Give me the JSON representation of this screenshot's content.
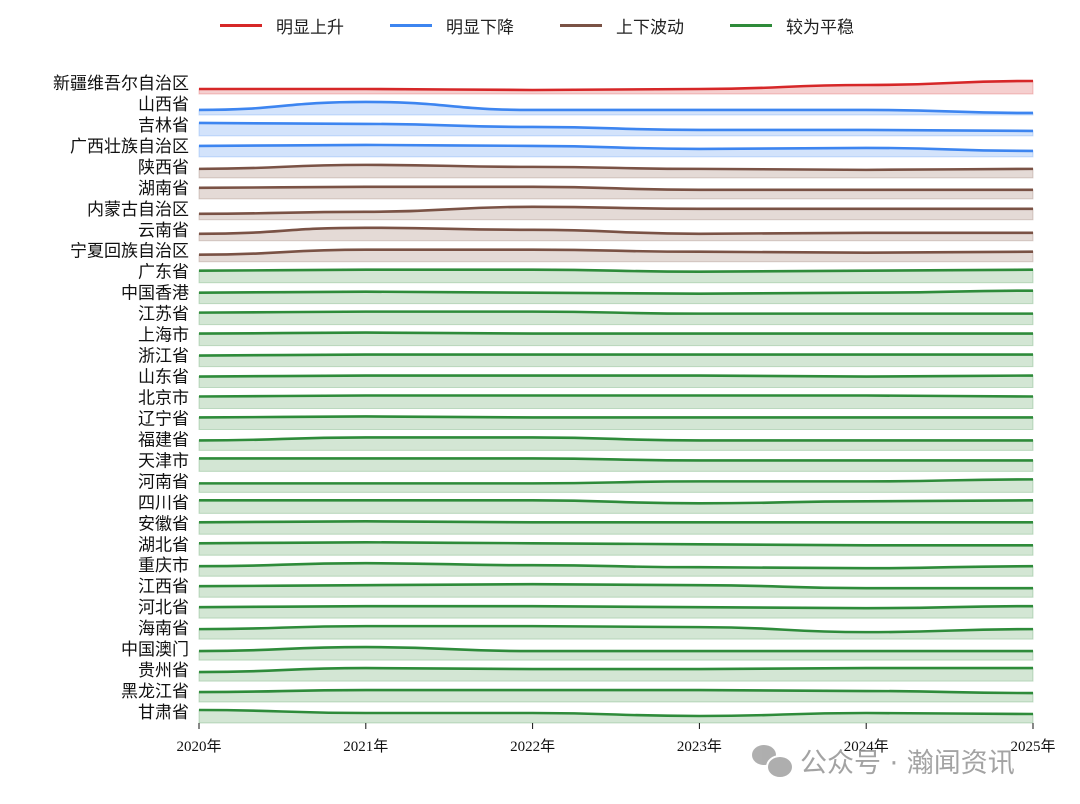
{
  "chart_data": {
    "type": "area",
    "subtype": "ridgeline",
    "title": "",
    "xlabel": "",
    "ylabel": "",
    "x": [
      "2020年",
      "2021年",
      "2022年",
      "2023年",
      "2024年",
      "2025年"
    ],
    "grid": false,
    "legend_position": "top-center",
    "legend": [
      {
        "key": "rise",
        "label": "明显上升",
        "color": "#d62728",
        "fill": "#f5cfcf"
      },
      {
        "key": "fall",
        "label": "明显下降",
        "color": "#3d85f0",
        "fill": "#d3e3fb"
      },
      {
        "key": "fluct",
        "label": "上下波动",
        "color": "#7a5245",
        "fill": "#e4dad6"
      },
      {
        "key": "flat",
        "label": "较为平稳",
        "color": "#2e8b3a",
        "fill": "#d3e6d4"
      }
    ],
    "value_note": "Relative values shown as pixel offsets above each row's band base (higher = larger)",
    "series": [
      {
        "name": "新疆维吾尔自治区",
        "group": "rise",
        "values": [
          5,
          5,
          4,
          5,
          9,
          13
        ]
      },
      {
        "name": "山西省",
        "group": "fall",
        "values": [
          5,
          13,
          5,
          5,
          5,
          2
        ]
      },
      {
        "name": "吉林省",
        "group": "fall",
        "values": [
          13,
          12,
          9,
          6,
          6,
          5
        ]
      },
      {
        "name": "广西壮族自治区",
        "group": "fall",
        "values": [
          11,
          12,
          11,
          8,
          9,
          6
        ]
      },
      {
        "name": "陕西省",
        "group": "fluct",
        "values": [
          9,
          13,
          11,
          9,
          8,
          9
        ]
      },
      {
        "name": "湖南省",
        "group": "fluct",
        "values": [
          11,
          12,
          12,
          9,
          9,
          9
        ]
      },
      {
        "name": "内蒙古自治区",
        "group": "fluct",
        "values": [
          6,
          8,
          13,
          11,
          11,
          11
        ]
      },
      {
        "name": "云南省",
        "group": "fluct",
        "values": [
          7,
          13,
          11,
          7,
          8,
          8
        ]
      },
      {
        "name": "宁夏回族自治区",
        "group": "fluct",
        "values": [
          7,
          12,
          12,
          10,
          9,
          10
        ]
      },
      {
        "name": "广东省",
        "group": "flat",
        "values": [
          12,
          13,
          13,
          11,
          12,
          13
        ]
      },
      {
        "name": "中国香港",
        "group": "flat",
        "values": [
          11,
          12,
          11,
          10,
          11,
          13
        ]
      },
      {
        "name": "江苏省",
        "group": "flat",
        "values": [
          12,
          13,
          13,
          11,
          11,
          11
        ]
      },
      {
        "name": "上海市",
        "group": "flat",
        "values": [
          12,
          13,
          12,
          12,
          12,
          12
        ]
      },
      {
        "name": "浙江省",
        "group": "flat",
        "values": [
          11,
          12,
          12,
          12,
          12,
          12
        ]
      },
      {
        "name": "山东省",
        "group": "flat",
        "values": [
          11,
          12,
          12,
          12,
          11,
          12
        ]
      },
      {
        "name": "北京市",
        "group": "flat",
        "values": [
          12,
          13,
          13,
          13,
          13,
          12
        ]
      },
      {
        "name": "辽宁省",
        "group": "flat",
        "values": [
          12,
          13,
          12,
          12,
          12,
          12
        ]
      },
      {
        "name": "福建省",
        "group": "flat",
        "values": [
          10,
          13,
          13,
          10,
          10,
          10
        ]
      },
      {
        "name": "天津市",
        "group": "flat",
        "values": [
          13,
          13,
          13,
          11,
          11,
          11
        ]
      },
      {
        "name": "河南省",
        "group": "flat",
        "values": [
          9,
          9,
          9,
          11,
          11,
          13
        ]
      },
      {
        "name": "四川省",
        "group": "flat",
        "values": [
          13,
          13,
          13,
          10,
          12,
          13
        ]
      },
      {
        "name": "安徽省",
        "group": "flat",
        "values": [
          12,
          13,
          12,
          12,
          12,
          12
        ]
      },
      {
        "name": "湖北省",
        "group": "flat",
        "values": [
          12,
          13,
          12,
          11,
          10,
          10
        ]
      },
      {
        "name": "重庆市",
        "group": "flat",
        "values": [
          10,
          13,
          11,
          9,
          8,
          10
        ]
      },
      {
        "name": "江西省",
        "group": "flat",
        "values": [
          11,
          12,
          13,
          12,
          9,
          9
        ]
      },
      {
        "name": "河北省",
        "group": "flat",
        "values": [
          11,
          12,
          12,
          11,
          10,
          12
        ]
      },
      {
        "name": "海南省",
        "group": "flat",
        "values": [
          10,
          13,
          13,
          12,
          7,
          10
        ]
      },
      {
        "name": "中国澳门",
        "group": "flat",
        "values": [
          9,
          13,
          9,
          9,
          9,
          9
        ]
      },
      {
        "name": "贵州省",
        "group": "flat",
        "values": [
          9,
          13,
          12,
          12,
          13,
          13
        ]
      },
      {
        "name": "黑龙江省",
        "group": "flat",
        "values": [
          10,
          12,
          12,
          12,
          11,
          9
        ]
      },
      {
        "name": "甘肃省",
        "group": "flat",
        "values": [
          13,
          10,
          10,
          7,
          10,
          9
        ]
      }
    ]
  },
  "watermark": {
    "text": "公众号 · 瀚闻资讯",
    "icon": "wechat-icon"
  }
}
